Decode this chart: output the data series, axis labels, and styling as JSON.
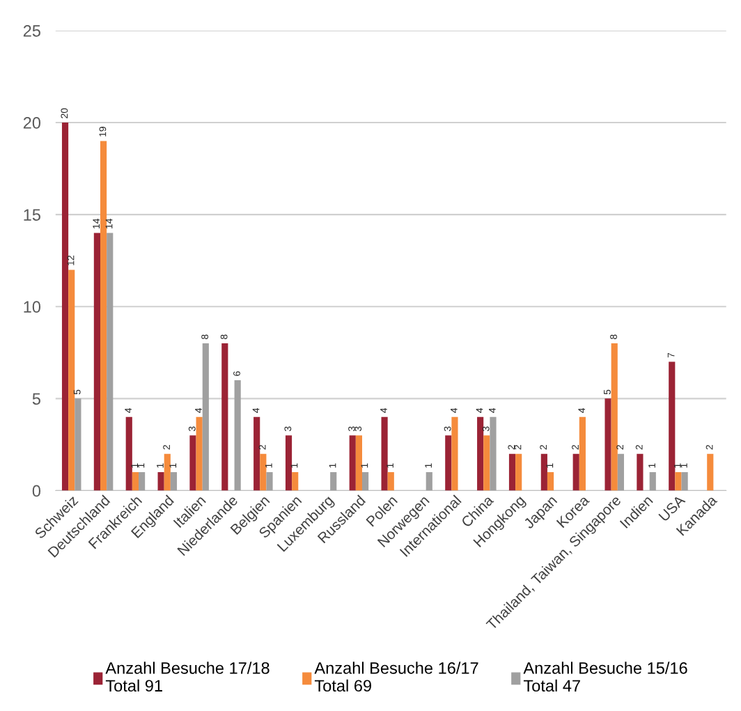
{
  "chart_data": {
    "type": "bar",
    "categories": [
      "Schweiz",
      "Deutschland",
      "Frankreich",
      "England",
      "Italien",
      "Niederlande",
      "Belgien",
      "Spanien",
      "Luxemburg",
      "Russland",
      "Polen",
      "Norwegen",
      "International",
      "China",
      "Hongkong",
      "Japan",
      "Korea",
      "Thailand, Taiwan, Singapore",
      "Indien",
      "USA",
      "Kanada"
    ],
    "series": [
      {
        "name": "Anzahl Besuche 17/18\nTotal 91",
        "color": "#9b2335",
        "values": [
          20,
          14,
          4,
          1,
          3,
          8,
          4,
          3,
          null,
          3,
          4,
          null,
          3,
          4,
          2,
          2,
          2,
          5,
          2,
          7,
          null
        ]
      },
      {
        "name": "Anzahl Besuche 16/17\nTotal 69",
        "color": "#f58b3c",
        "values": [
          12,
          19,
          1,
          2,
          4,
          null,
          2,
          1,
          null,
          3,
          1,
          null,
          4,
          3,
          2,
          1,
          4,
          8,
          null,
          1,
          2
        ]
      },
      {
        "name": "Anzahl Besuche 15/16\nTotal 47",
        "color": "#a0a0a0",
        "values": [
          5,
          14,
          1,
          1,
          8,
          6,
          1,
          null,
          1,
          1,
          null,
          1,
          null,
          4,
          null,
          null,
          null,
          2,
          1,
          1,
          null
        ]
      }
    ],
    "ylim": [
      0,
      25
    ],
    "yticks": [
      0,
      5,
      10,
      15,
      20,
      25
    ],
    "grid": "y",
    "legend": "bottom",
    "data_labels": true
  }
}
